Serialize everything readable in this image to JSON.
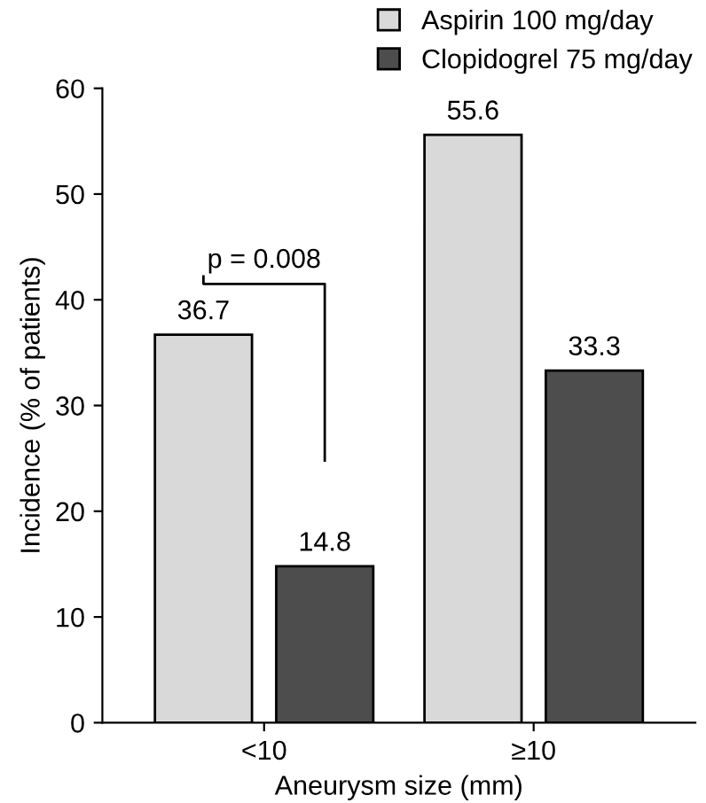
{
  "chart_data": {
    "type": "bar",
    "xlabel": "Aneurysm size (mm)",
    "ylabel": "Incidence (% of patients)",
    "categories": [
      "<10",
      "≥10"
    ],
    "series": [
      {
        "name": "Aspirin 100 mg/day",
        "color": "#d9d9d9",
        "values": [
          36.7,
          55.6
        ]
      },
      {
        "name": "Clopidogrel 75 mg/day",
        "color": "#4d4d4d",
        "values": [
          14.8,
          33.3
        ]
      }
    ],
    "ylim": [
      0,
      60
    ],
    "yticks": [
      0,
      10,
      20,
      30,
      40,
      50,
      60
    ],
    "grid": false,
    "legend": "top right",
    "data_labels": true,
    "annotations": [
      "p = 0.008"
    ]
  }
}
